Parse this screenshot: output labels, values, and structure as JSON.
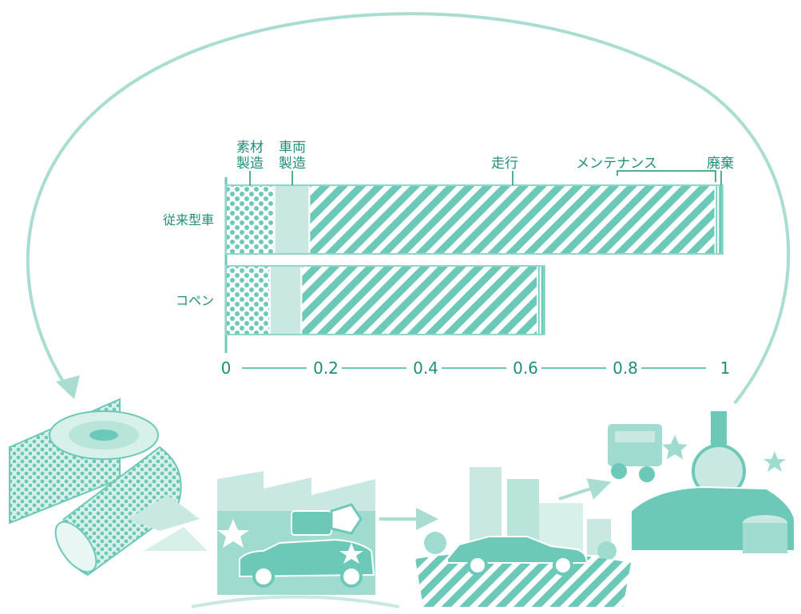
{
  "chart_data": {
    "type": "bar",
    "stacked": true,
    "orientation": "horizontal",
    "title": "",
    "xlabel": "",
    "ylabel": "",
    "xlim": [
      0,
      1
    ],
    "x_ticks": [
      "0",
      "0.2",
      "0.4",
      "0.6",
      "0.8",
      "1"
    ],
    "categories": [
      "従来型車",
      "コペン"
    ],
    "series": [
      {
        "name": "素材製造",
        "values": [
          0.097,
          0.088
        ]
      },
      {
        "name": "車両製造",
        "values": [
          0.07,
          0.063
        ]
      },
      {
        "name": "走行",
        "values": [
          0.813,
          0.473
        ]
      },
      {
        "name": "メンテナンス",
        "values": [
          0.006,
          0.006
        ]
      },
      {
        "name": "廃棄",
        "values": [
          0.009,
          0.008
        ]
      }
    ],
    "stage_labels": [
      {
        "lines": [
          "素材",
          "製造"
        ]
      },
      {
        "lines": [
          "車両",
          "製造"
        ]
      },
      {
        "lines": [
          "走行"
        ]
      },
      {
        "lines": [
          "メンテナンス"
        ]
      },
      {
        "lines": [
          "廃棄"
        ]
      }
    ],
    "grid": false,
    "legend": "none",
    "colors": {
      "accent": "#1f8f7a",
      "teal": "#6cc9b8",
      "light": "#c9e8e1",
      "arc": "#a9ddd2"
    }
  },
  "illustrations": [
    {
      "name": "material-rolls-illustration"
    },
    {
      "name": "factory-robot-illustration"
    },
    {
      "name": "city-driving-illustration"
    },
    {
      "name": "disposal-illustration"
    }
  ]
}
